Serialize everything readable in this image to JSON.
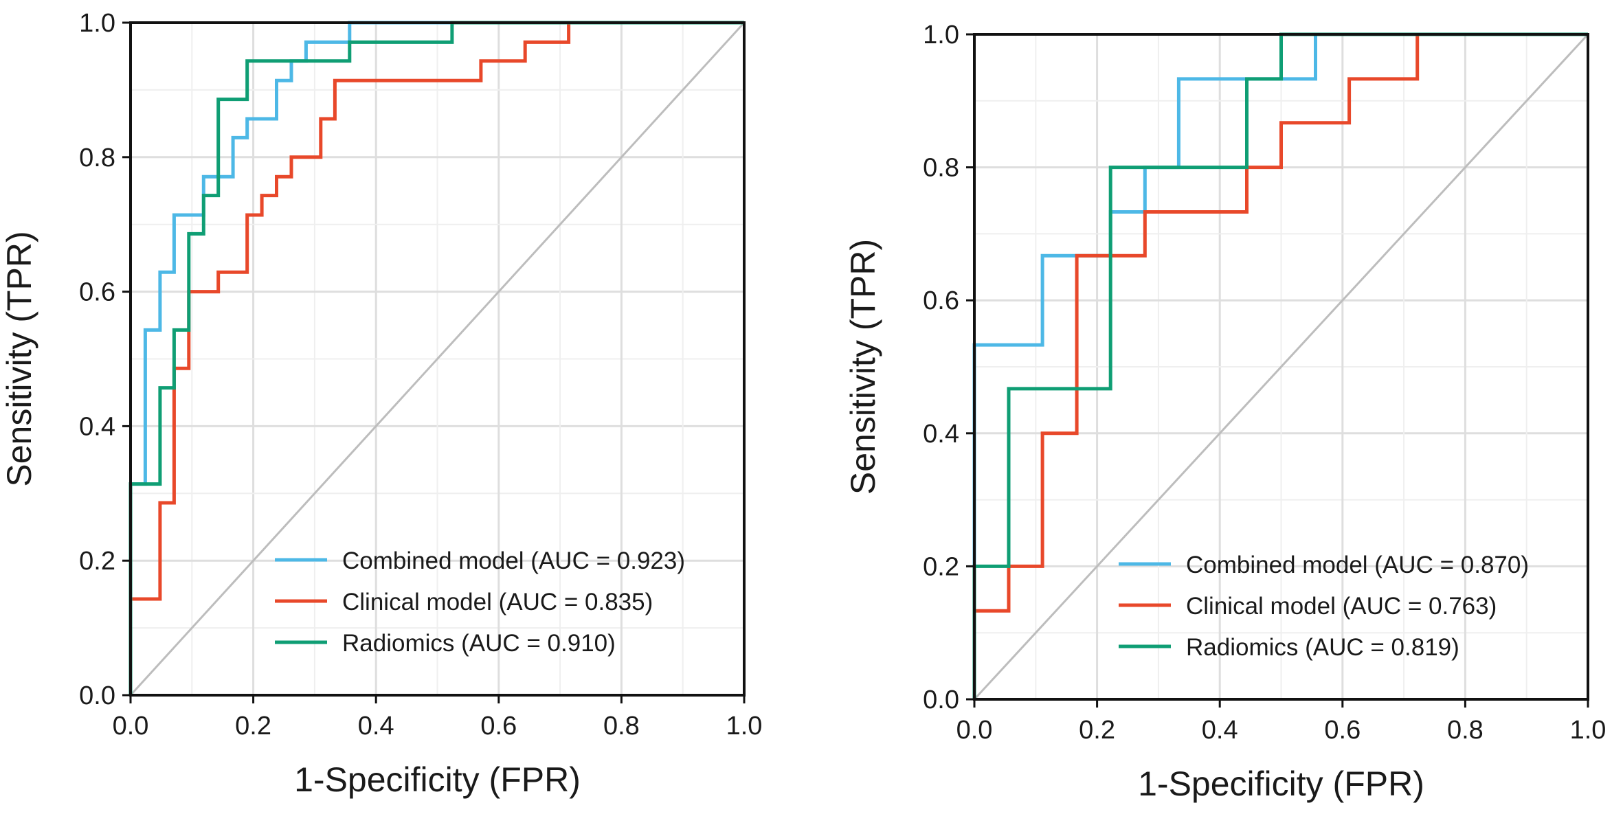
{
  "chart_data": [
    {
      "type": "line",
      "title": "",
      "xlabel": "1-Specificity (FPR)",
      "ylabel": "Sensitivity (TPR)",
      "xlim": [
        0,
        1
      ],
      "ylim": [
        0,
        1
      ],
      "xticks": [
        "0.0",
        "0.2",
        "0.4",
        "0.6",
        "0.8",
        "1.0"
      ],
      "yticks": [
        "0.0",
        "0.2",
        "0.4",
        "0.6",
        "0.8",
        "1.0"
      ],
      "grid": true,
      "legend_position": "bottom-right",
      "diagonal_reference": true,
      "series": [
        {
          "name": "Combined model (AUC = 0.923)",
          "color": "#4db8e6",
          "x": [
            0,
            0,
            0.024,
            0.024,
            0.048,
            0.048,
            0.071,
            0.071,
            0.119,
            0.119,
            0.143,
            0.143,
            0.167,
            0.167,
            0.19,
            0.19,
            0.238,
            0.238,
            0.262,
            0.262,
            0.286,
            0.286,
            0.357,
            0.357,
            1
          ],
          "y": [
            0,
            0.314,
            0.314,
            0.543,
            0.543,
            0.629,
            0.629,
            0.714,
            0.714,
            0.771,
            0.771,
            0.771,
            0.771,
            0.829,
            0.829,
            0.857,
            0.857,
            0.914,
            0.914,
            0.943,
            0.943,
            0.971,
            0.971,
            1,
            1
          ]
        },
        {
          "name": "Clinical model (AUC = 0.835)",
          "color": "#e8482a",
          "x": [
            0,
            0,
            0.048,
            0.048,
            0.071,
            0.071,
            0.095,
            0.095,
            0.143,
            0.143,
            0.19,
            0.19,
            0.214,
            0.214,
            0.238,
            0.238,
            0.262,
            0.262,
            0.31,
            0.31,
            0.333,
            0.333,
            0.571,
            0.571,
            0.643,
            0.643,
            0.714,
            0.714,
            1
          ],
          "y": [
            0,
            0.143,
            0.143,
            0.286,
            0.286,
            0.486,
            0.486,
            0.6,
            0.6,
            0.629,
            0.629,
            0.714,
            0.714,
            0.743,
            0.743,
            0.771,
            0.771,
            0.8,
            0.8,
            0.857,
            0.857,
            0.914,
            0.914,
            0.943,
            0.943,
            0.971,
            0.971,
            1,
            1
          ]
        },
        {
          "name": "Radiomics (AUC = 0.910)",
          "color": "#0f9e74",
          "x": [
            0,
            0,
            0.048,
            0.048,
            0.071,
            0.071,
            0.095,
            0.095,
            0.119,
            0.119,
            0.143,
            0.143,
            0.19,
            0.19,
            0.238,
            0.238,
            0.357,
            0.357,
            0.524,
            0.524,
            1
          ],
          "y": [
            0,
            0.314,
            0.314,
            0.457,
            0.457,
            0.543,
            0.543,
            0.686,
            0.686,
            0.743,
            0.743,
            0.886,
            0.886,
            0.943,
            0.943,
            0.943,
            0.943,
            0.971,
            0.971,
            1,
            1
          ]
        }
      ]
    },
    {
      "type": "line",
      "title": "",
      "xlabel": "1-Specificity (FPR)",
      "ylabel": "Sensitivity (TPR)",
      "xlim": [
        0,
        1
      ],
      "ylim": [
        0,
        1
      ],
      "xticks": [
        "0.0",
        "0.2",
        "0.4",
        "0.6",
        "0.8",
        "1.0"
      ],
      "yticks": [
        "0.0",
        "0.2",
        "0.4",
        "0.6",
        "0.8",
        "1.0"
      ],
      "grid": true,
      "legend_position": "bottom-right",
      "diagonal_reference": true,
      "series": [
        {
          "name": "Combined model (AUC = 0.870)",
          "color": "#4db8e6",
          "x": [
            0,
            0,
            0.111,
            0.111,
            0.222,
            0.222,
            0.278,
            0.278,
            0.333,
            0.333,
            0.556,
            0.556,
            1
          ],
          "y": [
            0,
            0.533,
            0.533,
            0.667,
            0.667,
            0.733,
            0.733,
            0.8,
            0.8,
            0.933,
            0.933,
            1,
            1
          ]
        },
        {
          "name": "Clinical model (AUC = 0.763)",
          "color": "#e8482a",
          "x": [
            0,
            0,
            0.056,
            0.056,
            0.111,
            0.111,
            0.167,
            0.167,
            0.278,
            0.278,
            0.444,
            0.444,
            0.5,
            0.5,
            0.556,
            0.556,
            0.611,
            0.611,
            0.722,
            0.722,
            1
          ],
          "y": [
            0,
            0.133,
            0.133,
            0.2,
            0.2,
            0.4,
            0.4,
            0.667,
            0.667,
            0.733,
            0.733,
            0.8,
            0.8,
            0.867,
            0.867,
            0.867,
            0.867,
            0.933,
            0.933,
            1,
            1
          ]
        },
        {
          "name": "Radiomics (AUC = 0.819)",
          "color": "#0f9e74",
          "x": [
            0,
            0,
            0.056,
            0.056,
            0.222,
            0.222,
            0.444,
            0.444,
            0.5,
            0.5,
            1
          ],
          "y": [
            0,
            0.2,
            0.2,
            0.467,
            0.467,
            0.8,
            0.8,
            0.933,
            0.933,
            1,
            1
          ]
        }
      ]
    }
  ]
}
